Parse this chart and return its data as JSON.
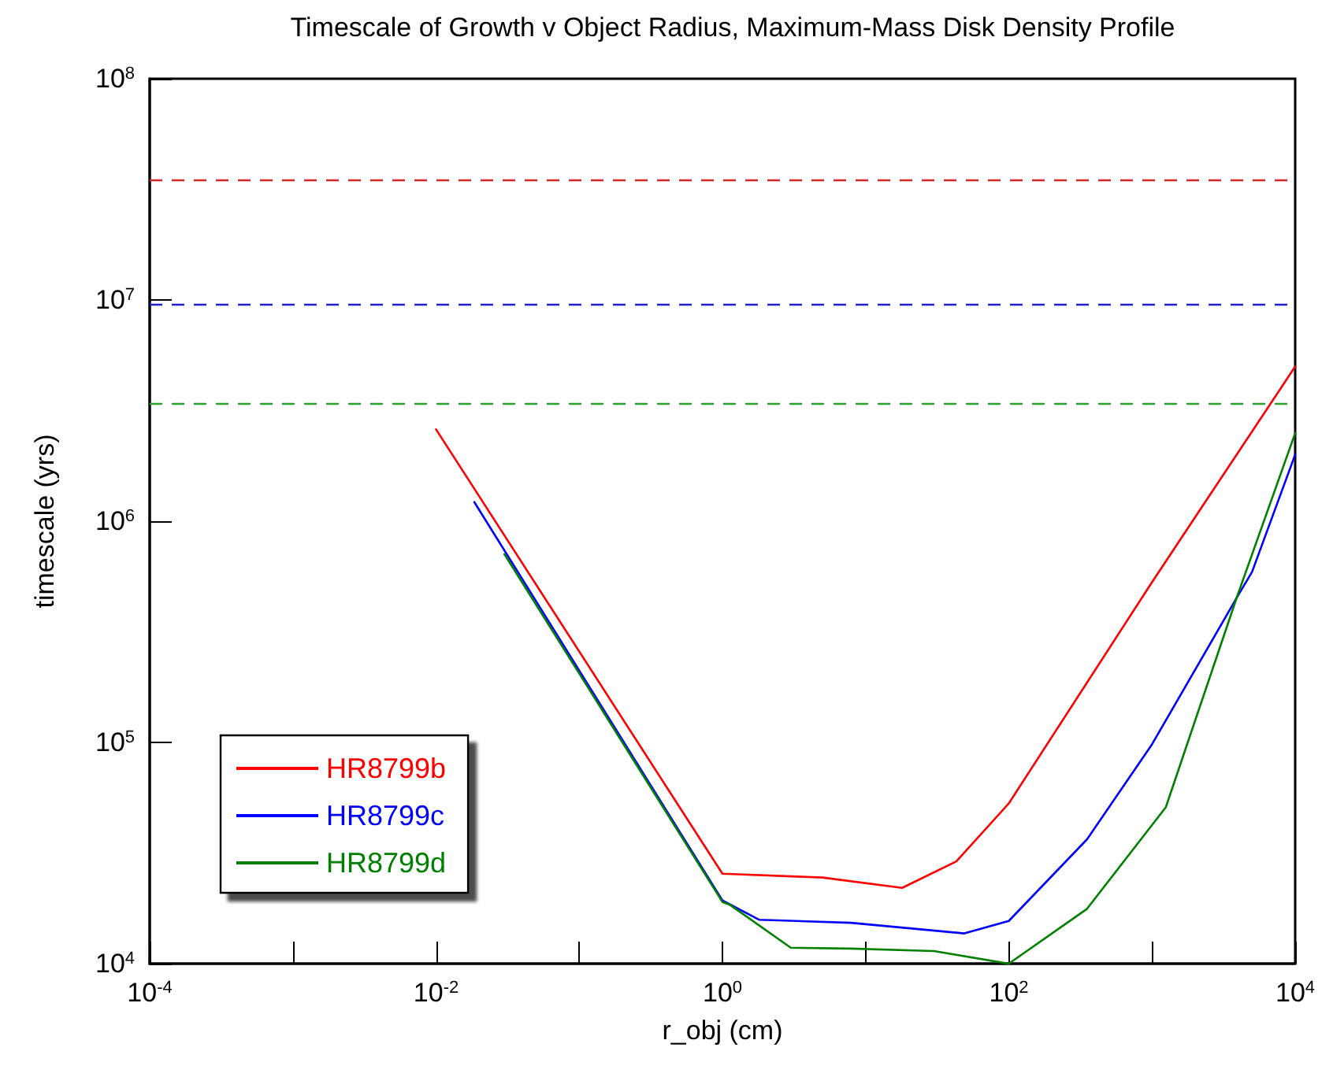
{
  "chart_data": {
    "type": "line",
    "title": "Timescale of Growth v Object Radius, Maximum-Mass Disk Density Profile",
    "xlabel": "r_obj (cm)",
    "ylabel": "timescale (yrs)",
    "log": "xy",
    "grid": false,
    "legend": "bottom left",
    "marker": "none",
    "line_style": "solid",
    "xlim": [
      0.0001,
      10000
    ],
    "ylim": [
      10000,
      100000000
    ],
    "xticks": [
      {
        "value": 0.0001,
        "label": "10$^{-4}$"
      },
      {
        "value": 0.001,
        "label": null
      },
      {
        "value": 0.01,
        "label": "10$^{-2}$"
      },
      {
        "value": 0.1,
        "label": null
      },
      {
        "value": 1,
        "label": "10$^{0}$"
      },
      {
        "value": 10,
        "label": null
      },
      {
        "value": 100,
        "label": "10$^{2}$"
      },
      {
        "value": 1000,
        "label": null
      },
      {
        "value": 10000,
        "label": "10$^{4}$"
      }
    ],
    "yticks": [
      {
        "value": 10000,
        "label": "10$^{4}$"
      },
      {
        "value": 100000,
        "label": "10$^{5}$"
      },
      {
        "value": 1000000,
        "label": "10$^{6}$"
      },
      {
        "value": 10000000,
        "label": "10$^{7}$"
      },
      {
        "value": 100000000,
        "label": "10$^{8}$"
      }
    ],
    "ref_lines": [
      {
        "axis": "y",
        "value": 35000000,
        "color": "#d62728",
        "line_style": "dashed"
      },
      {
        "axis": "y",
        "value": 9600000,
        "color": "#2222cc",
        "line_style": "dashed"
      },
      {
        "axis": "y",
        "value": 3400000,
        "color": "#2ca02c",
        "line_style": "dashed"
      }
    ],
    "series": [
      {
        "name": "HR8799b",
        "color": "#ff0000",
        "x": [
          0.01,
          1,
          5,
          18,
          43,
          100,
          1000,
          10000
        ],
        "values": [
          2600000,
          25500,
          24500,
          22000,
          29000,
          53000,
          530000,
          5000000
        ]
      },
      {
        "name": "HR8799c",
        "color": "#0000ff",
        "x": [
          0.0185,
          1,
          1.8,
          7.9,
          49,
          100,
          352,
          1000,
          3900,
          5000,
          10000
        ],
        "values": [
          1220000,
          19300,
          15800,
          15300,
          13700,
          15600,
          36500,
          98000,
          450000,
          590000,
          2000000
        ]
      },
      {
        "name": "HR8799d",
        "color": "#008000",
        "x": [
          0.03,
          1,
          1.12,
          3,
          7.9,
          30,
          100,
          352,
          1250,
          3900,
          10000
        ],
        "values": [
          710000,
          19000,
          18500,
          11800,
          11700,
          11400,
          10000,
          17700,
          51000,
          450000,
          2500000
        ]
      }
    ]
  }
}
